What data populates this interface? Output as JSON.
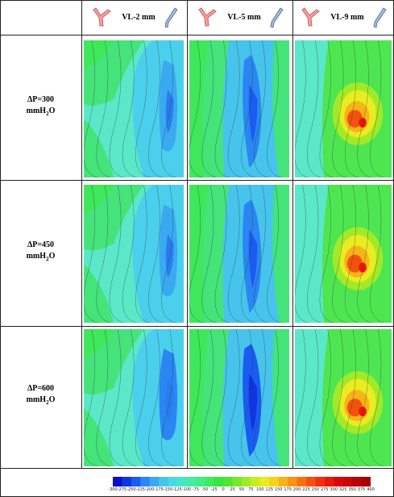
{
  "columns": [
    {
      "label": "VL-2 mm"
    },
    {
      "label": "VL-5 mm"
    },
    {
      "label": "VL-9 mm"
    }
  ],
  "rows": [
    {
      "label_line1": "ΔP=300",
      "label_main": "mmH",
      "label_sub": "2",
      "label_tail": "O"
    },
    {
      "label_line1": "ΔP=450",
      "label_main": "mmH",
      "label_sub": "2",
      "label_tail": "O"
    },
    {
      "label_line1": "ΔP=600",
      "label_main": "mmH",
      "label_sub": "2",
      "label_tail": "O"
    }
  ],
  "colorbar": {
    "ticks": [
      "-300",
      "-275",
      "-250",
      "-225",
      "-200",
      "-175",
      "-150",
      "-125",
      "-100",
      "-75",
      "-50",
      "-25",
      "0",
      "25",
      "50",
      "75",
      "100",
      "125",
      "150",
      "175",
      "200",
      "225",
      "250",
      "275",
      "300",
      "325",
      "350",
      "375",
      "400"
    ],
    "colors": [
      "#0a10c8",
      "#1034e0",
      "#1a5cf0",
      "#2a86f2",
      "#3aaaf0",
      "#46c4ec",
      "#4ad8e0",
      "#48e4c8",
      "#44eaa6",
      "#3eee82",
      "#3aee5e",
      "#36e840",
      "#4ee632",
      "#78e82c",
      "#a2ea28",
      "#c8ec24",
      "#e8ec20",
      "#f2d41c",
      "#f6b418",
      "#f69414",
      "#f67210",
      "#f2520e",
      "#ee320c",
      "#e8180a",
      "#d80808",
      "#c80606",
      "#b80404",
      "#a80202"
    ]
  }
}
